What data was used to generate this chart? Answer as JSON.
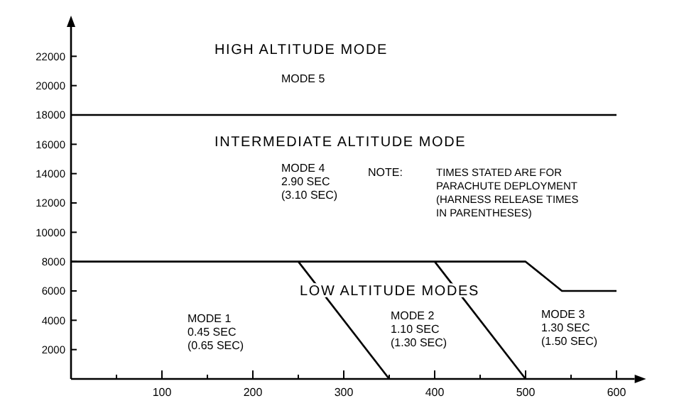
{
  "chart_data": {
    "type": "line",
    "xlim": [
      0,
      620
    ],
    "ylim": [
      0,
      24000
    ],
    "xticks": [
      {
        "value": 50,
        "label": null
      },
      100,
      {
        "value": 150,
        "label": null
      },
      200,
      {
        "value": 250,
        "label": null
      },
      300,
      {
        "value": 350,
        "label": null
      },
      400,
      {
        "value": 450,
        "label": null
      },
      500,
      {
        "value": 550,
        "label": null
      },
      600
    ],
    "yticks": [
      2000,
      4000,
      6000,
      8000,
      10000,
      12000,
      14000,
      16000,
      18000,
      20000,
      22000
    ],
    "grid": false,
    "marker": "none",
    "line_style": "solid",
    "series": [
      {
        "color": "#000000",
        "x": [
          0,
          600
        ],
        "values": [
          18000,
          18000
        ]
      },
      {
        "color": "#000000",
        "x": [
          0,
          500,
          540,
          600
        ],
        "values": [
          8000,
          8000,
          6000,
          6000
        ]
      },
      {
        "color": "#000000",
        "x": [
          250,
          350
        ],
        "values": [
          8000,
          0
        ]
      },
      {
        "color": "#000000",
        "x": [
          400,
          500
        ],
        "values": [
          8000,
          0
        ]
      }
    ],
    "annotations": [
      "HIGH ALTITUDE MODE",
      "MODE 5",
      "INTERMEDIATE ALTITUDE MODE",
      "MODE 4\n2.90 SEC\n(3.10 SEC)",
      "NOTE:",
      "TIMES STATED ARE FOR\nPARACHUTE DEPLOYMENT\n(HARNESS RELEASE TIMES\nIN PARENTHESES)",
      "LOW ALTITUDE MODES",
      "MODE 1\n0.45 SEC\n(0.65 SEC)",
      "MODE 2\n1.10 SEC\n(1.30 SEC)",
      "MODE 3\n1.30 SEC\n(1.50 SEC)"
    ]
  }
}
